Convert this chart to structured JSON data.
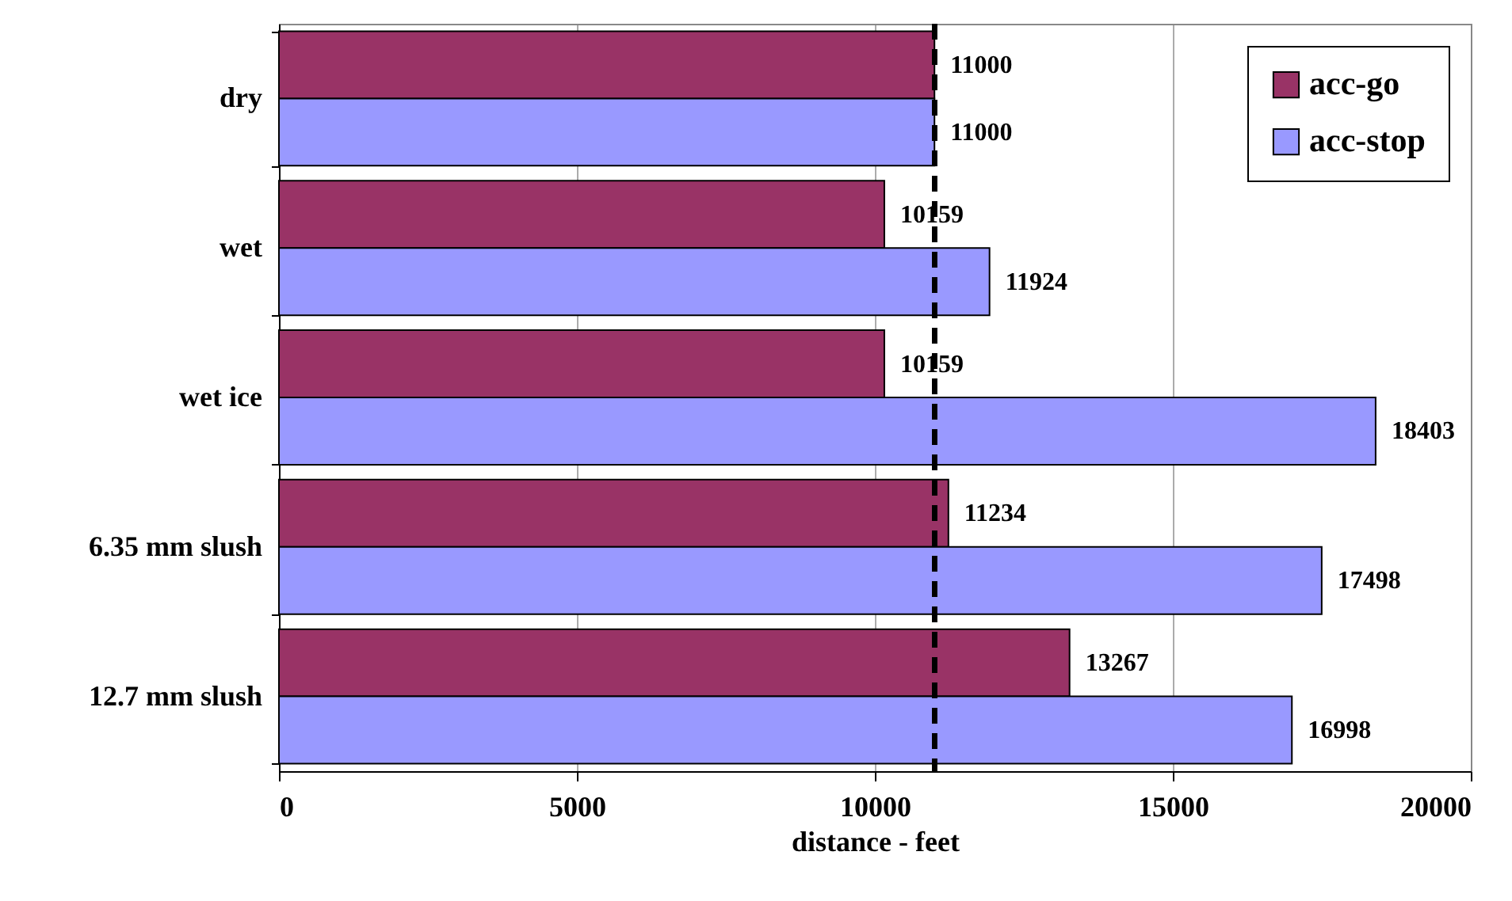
{
  "chart_data": {
    "type": "bar",
    "orientation": "horizontal",
    "xlabel": "distance - feet",
    "categories": [
      "dry",
      "wet",
      "wet ice",
      "6.35 mm slush",
      "12.7 mm slush"
    ],
    "series": [
      {
        "name": "acc-go",
        "color": "#993366",
        "values": [
          11000,
          10159,
          10159,
          11234,
          13267
        ]
      },
      {
        "name": "acc-stop",
        "color": "#9999ff",
        "values": [
          11000,
          11924,
          18403,
          17498,
          16998
        ]
      }
    ],
    "xlim": [
      0,
      20000
    ],
    "xticks": [
      0,
      5000,
      10000,
      15000,
      20000
    ],
    "grid": "x",
    "legend": "top right",
    "data_labels": true,
    "ref_lines": [
      {
        "axis": "x",
        "value": 11000,
        "line_style": "dashed",
        "color": "#000000"
      }
    ]
  }
}
